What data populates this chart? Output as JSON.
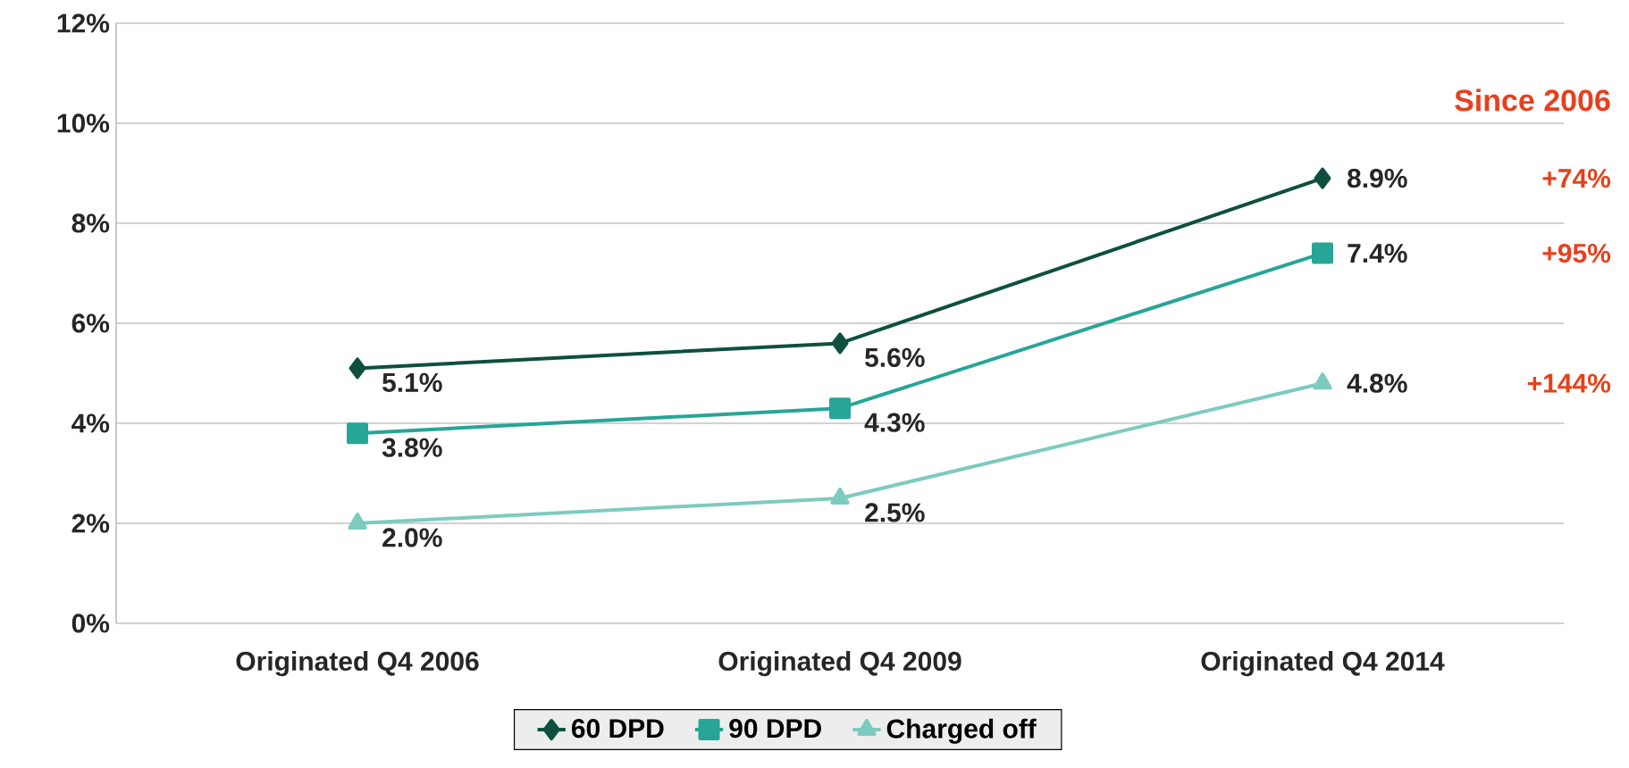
{
  "chart_data": {
    "type": "line",
    "categories": [
      "Originated Q4 2006",
      "Originated Q4 2009",
      "Originated Q4 2014"
    ],
    "series": [
      {
        "name": "60 DPD",
        "color": "#0f4f40",
        "marker": "diamond",
        "values": [
          5.1,
          5.6,
          8.9
        ],
        "value_labels": [
          "5.1%",
          "5.6%",
          "8.9%"
        ]
      },
      {
        "name": "90 DPD",
        "color": "#27a597",
        "marker": "square",
        "values": [
          3.8,
          4.3,
          7.4
        ],
        "value_labels": [
          "3.8%",
          "4.3%",
          "7.4%"
        ]
      },
      {
        "name": "Charged off",
        "color": "#7dcbbf",
        "marker": "triangle",
        "values": [
          2.0,
          2.5,
          4.8
        ],
        "value_labels": [
          "2.0%",
          "2.5%",
          "4.8%"
        ]
      }
    ],
    "ylim": [
      0,
      12
    ],
    "yticks": [
      {
        "value": 0,
        "label": "0%"
      },
      {
        "value": 2,
        "label": "2%"
      },
      {
        "value": 4,
        "label": "4%"
      },
      {
        "value": 6,
        "label": "6%"
      },
      {
        "value": 8,
        "label": "8%"
      },
      {
        "value": 10,
        "label": "10%"
      },
      {
        "value": 12,
        "label": "12%"
      }
    ],
    "grid": "y",
    "legend": "bottom",
    "line_style": "solid",
    "annotations": [
      "Since 2006",
      "+74%",
      "+95%",
      "+144%"
    ]
  }
}
